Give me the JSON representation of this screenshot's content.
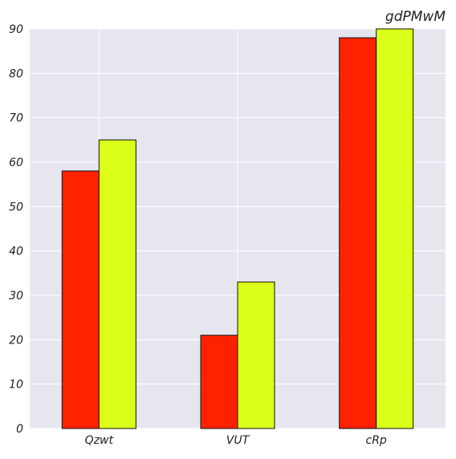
{
  "chart_data": {
    "type": "bar",
    "title": "gdPMwM",
    "xlabel": "",
    "ylabel": "",
    "categories": [
      "Qzwt",
      "VUT",
      "cRp"
    ],
    "series": [
      {
        "color": "#ff2200",
        "values": [
          58,
          21,
          88
        ]
      },
      {
        "color": "#dcff1a",
        "values": [
          65,
          33,
          90
        ]
      }
    ],
    "ylim": [
      0,
      90
    ],
    "yticks": [
      "0",
      "10",
      "20",
      "30",
      "40",
      "50",
      "60",
      "70",
      "80",
      "90"
    ],
    "grid": true,
    "legend": "none",
    "plot_background": "#e6e6ef",
    "grid_color": "#ffffff"
  }
}
